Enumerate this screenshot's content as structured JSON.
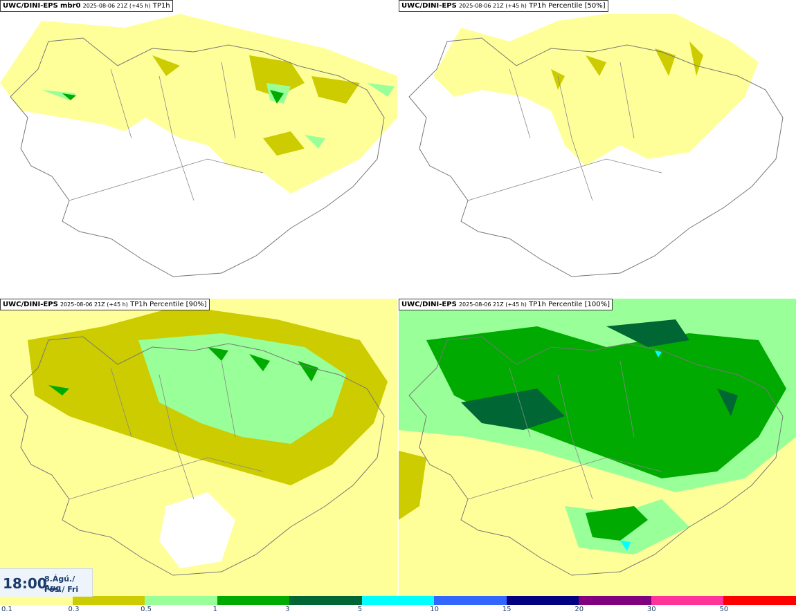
{
  "panels": [
    {
      "prefix": "UWC/DINI-EPS",
      "name": "mbr0",
      "run": "2025-08-06 21Z (+45 h)",
      "field": "TP1h"
    },
    {
      "prefix": "UWC/DINI-EPS",
      "name": "",
      "run": "2025-08-06 21Z (+45 h)",
      "field": "TP1h Percentile [50%]"
    },
    {
      "prefix": "UWC/DINI-EPS",
      "name": "",
      "run": "2025-08-06 21Z (+45 h)",
      "field": "TP1h Percentile [90%]"
    },
    {
      "prefix": "UWC/DINI-EPS",
      "name": "",
      "run": "2025-08-06 21Z (+45 h)",
      "field": "TP1h Percentile [100%]"
    }
  ],
  "valid": {
    "time": "18:00",
    "date_line1": "8.Ágú./ Aug",
    "date_line2": "Fös./ Fri"
  },
  "legend": {
    "colors": [
      "#ffff99",
      "#cccc00",
      "#99ff99",
      "#00aa00",
      "#006633",
      "#00ffff",
      "#3366ff",
      "#000080",
      "#800080",
      "#ff3399",
      "#ff0000"
    ],
    "labels": [
      "0.1",
      "0.3",
      "0.5",
      "1",
      "3",
      "5",
      "10",
      "15",
      "20",
      "30",
      "50"
    ]
  }
}
